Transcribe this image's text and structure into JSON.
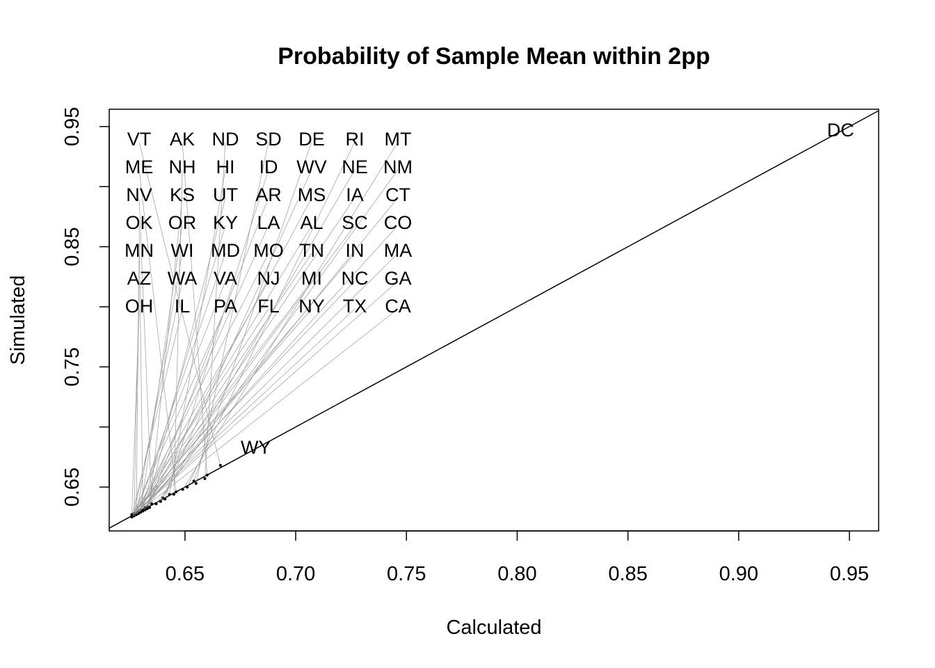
{
  "chart_data": {
    "type": "scatter",
    "title": "Probability of Sample Mean within 2pp",
    "xlabel": "Calculated",
    "ylabel": "Simulated",
    "xlim": [
      0.6158,
      0.9632
    ],
    "ylim": [
      0.6135,
      0.9644
    ],
    "x_ticks": [
      "0.65",
      "0.70",
      "0.75",
      "0.80",
      "0.85",
      "0.90",
      "0.95"
    ],
    "y_ticks": [
      "0.65",
      "0.70",
      "0.75",
      "0.80",
      "0.85",
      "0.90",
      "0.95"
    ],
    "y_tick_labels": [
      "0.65",
      "",
      "0.75",
      "",
      "0.85",
      "",
      "0.95"
    ],
    "grid": false,
    "reference_line": {
      "type": "y = x"
    },
    "marker": "text labels",
    "points": [
      {
        "label": "DC",
        "x": 0.946,
        "y": 0.947
      },
      {
        "label": "WY",
        "x": 0.682,
        "y": 0.683
      },
      {
        "label": "VT",
        "x": 0.666,
        "y": 0.668
      },
      {
        "label": "AK",
        "x": 0.66,
        "y": 0.66
      },
      {
        "label": "ND",
        "x": 0.659,
        "y": 0.657
      },
      {
        "label": "SD",
        "x": 0.655,
        "y": 0.653
      },
      {
        "label": "DE",
        "x": 0.654,
        "y": 0.655
      },
      {
        "label": "RI",
        "x": 0.651,
        "y": 0.65
      },
      {
        "label": "MT",
        "x": 0.649,
        "y": 0.648
      },
      {
        "label": "ME",
        "x": 0.646,
        "y": 0.646
      },
      {
        "label": "NH",
        "x": 0.645,
        "y": 0.644
      },
      {
        "label": "HI",
        "x": 0.643,
        "y": 0.644
      },
      {
        "label": "ID",
        "x": 0.641,
        "y": 0.64
      },
      {
        "label": "WV",
        "x": 0.64,
        "y": 0.641
      },
      {
        "label": "NE",
        "x": 0.639,
        "y": 0.638
      },
      {
        "label": "NM",
        "x": 0.637,
        "y": 0.636
      },
      {
        "label": "NV",
        "x": 0.635,
        "y": 0.636
      },
      {
        "label": "KS",
        "x": 0.634,
        "y": 0.633
      },
      {
        "label": "UT",
        "x": 0.633,
        "y": 0.634
      },
      {
        "label": "AR",
        "x": 0.633,
        "y": 0.632
      },
      {
        "label": "MS",
        "x": 0.632,
        "y": 0.631
      },
      {
        "label": "IA",
        "x": 0.632,
        "y": 0.633
      },
      {
        "label": "CT",
        "x": 0.631,
        "y": 0.63
      },
      {
        "label": "OK",
        "x": 0.631,
        "y": 0.631
      },
      {
        "label": "OR",
        "x": 0.63,
        "y": 0.631
      },
      {
        "label": "KY",
        "x": 0.63,
        "y": 0.629
      },
      {
        "label": "LA",
        "x": 0.63,
        "y": 0.63
      },
      {
        "label": "AL",
        "x": 0.629,
        "y": 0.63
      },
      {
        "label": "SC",
        "x": 0.629,
        "y": 0.628
      },
      {
        "label": "CO",
        "x": 0.629,
        "y": 0.629
      },
      {
        "label": "MN",
        "x": 0.628,
        "y": 0.629
      },
      {
        "label": "WI",
        "x": 0.628,
        "y": 0.627
      },
      {
        "label": "MD",
        "x": 0.628,
        "y": 0.628
      },
      {
        "label": "MO",
        "x": 0.628,
        "y": 0.629
      },
      {
        "label": "TN",
        "x": 0.628,
        "y": 0.627
      },
      {
        "label": "IN",
        "x": 0.627,
        "y": 0.628
      },
      {
        "label": "MA",
        "x": 0.627,
        "y": 0.627
      },
      {
        "label": "AZ",
        "x": 0.627,
        "y": 0.626
      },
      {
        "label": "WA",
        "x": 0.627,
        "y": 0.628
      },
      {
        "label": "VA",
        "x": 0.627,
        "y": 0.627
      },
      {
        "label": "NJ",
        "x": 0.627,
        "y": 0.626
      },
      {
        "label": "MI",
        "x": 0.627,
        "y": 0.628
      },
      {
        "label": "NC",
        "x": 0.626,
        "y": 0.627
      },
      {
        "label": "GA",
        "x": 0.626,
        "y": 0.626
      },
      {
        "label": "OH",
        "x": 0.626,
        "y": 0.627
      },
      {
        "label": "IL",
        "x": 0.626,
        "y": 0.626
      },
      {
        "label": "PA",
        "x": 0.626,
        "y": 0.625
      },
      {
        "label": "FL",
        "x": 0.626,
        "y": 0.626
      },
      {
        "label": "NY",
        "x": 0.626,
        "y": 0.627
      },
      {
        "label": "TX",
        "x": 0.626,
        "y": 0.626
      },
      {
        "label": "CA",
        "x": 0.626,
        "y": 0.625
      }
    ],
    "colors": {
      "ink": "#000000",
      "background": "#ffffff"
    }
  }
}
